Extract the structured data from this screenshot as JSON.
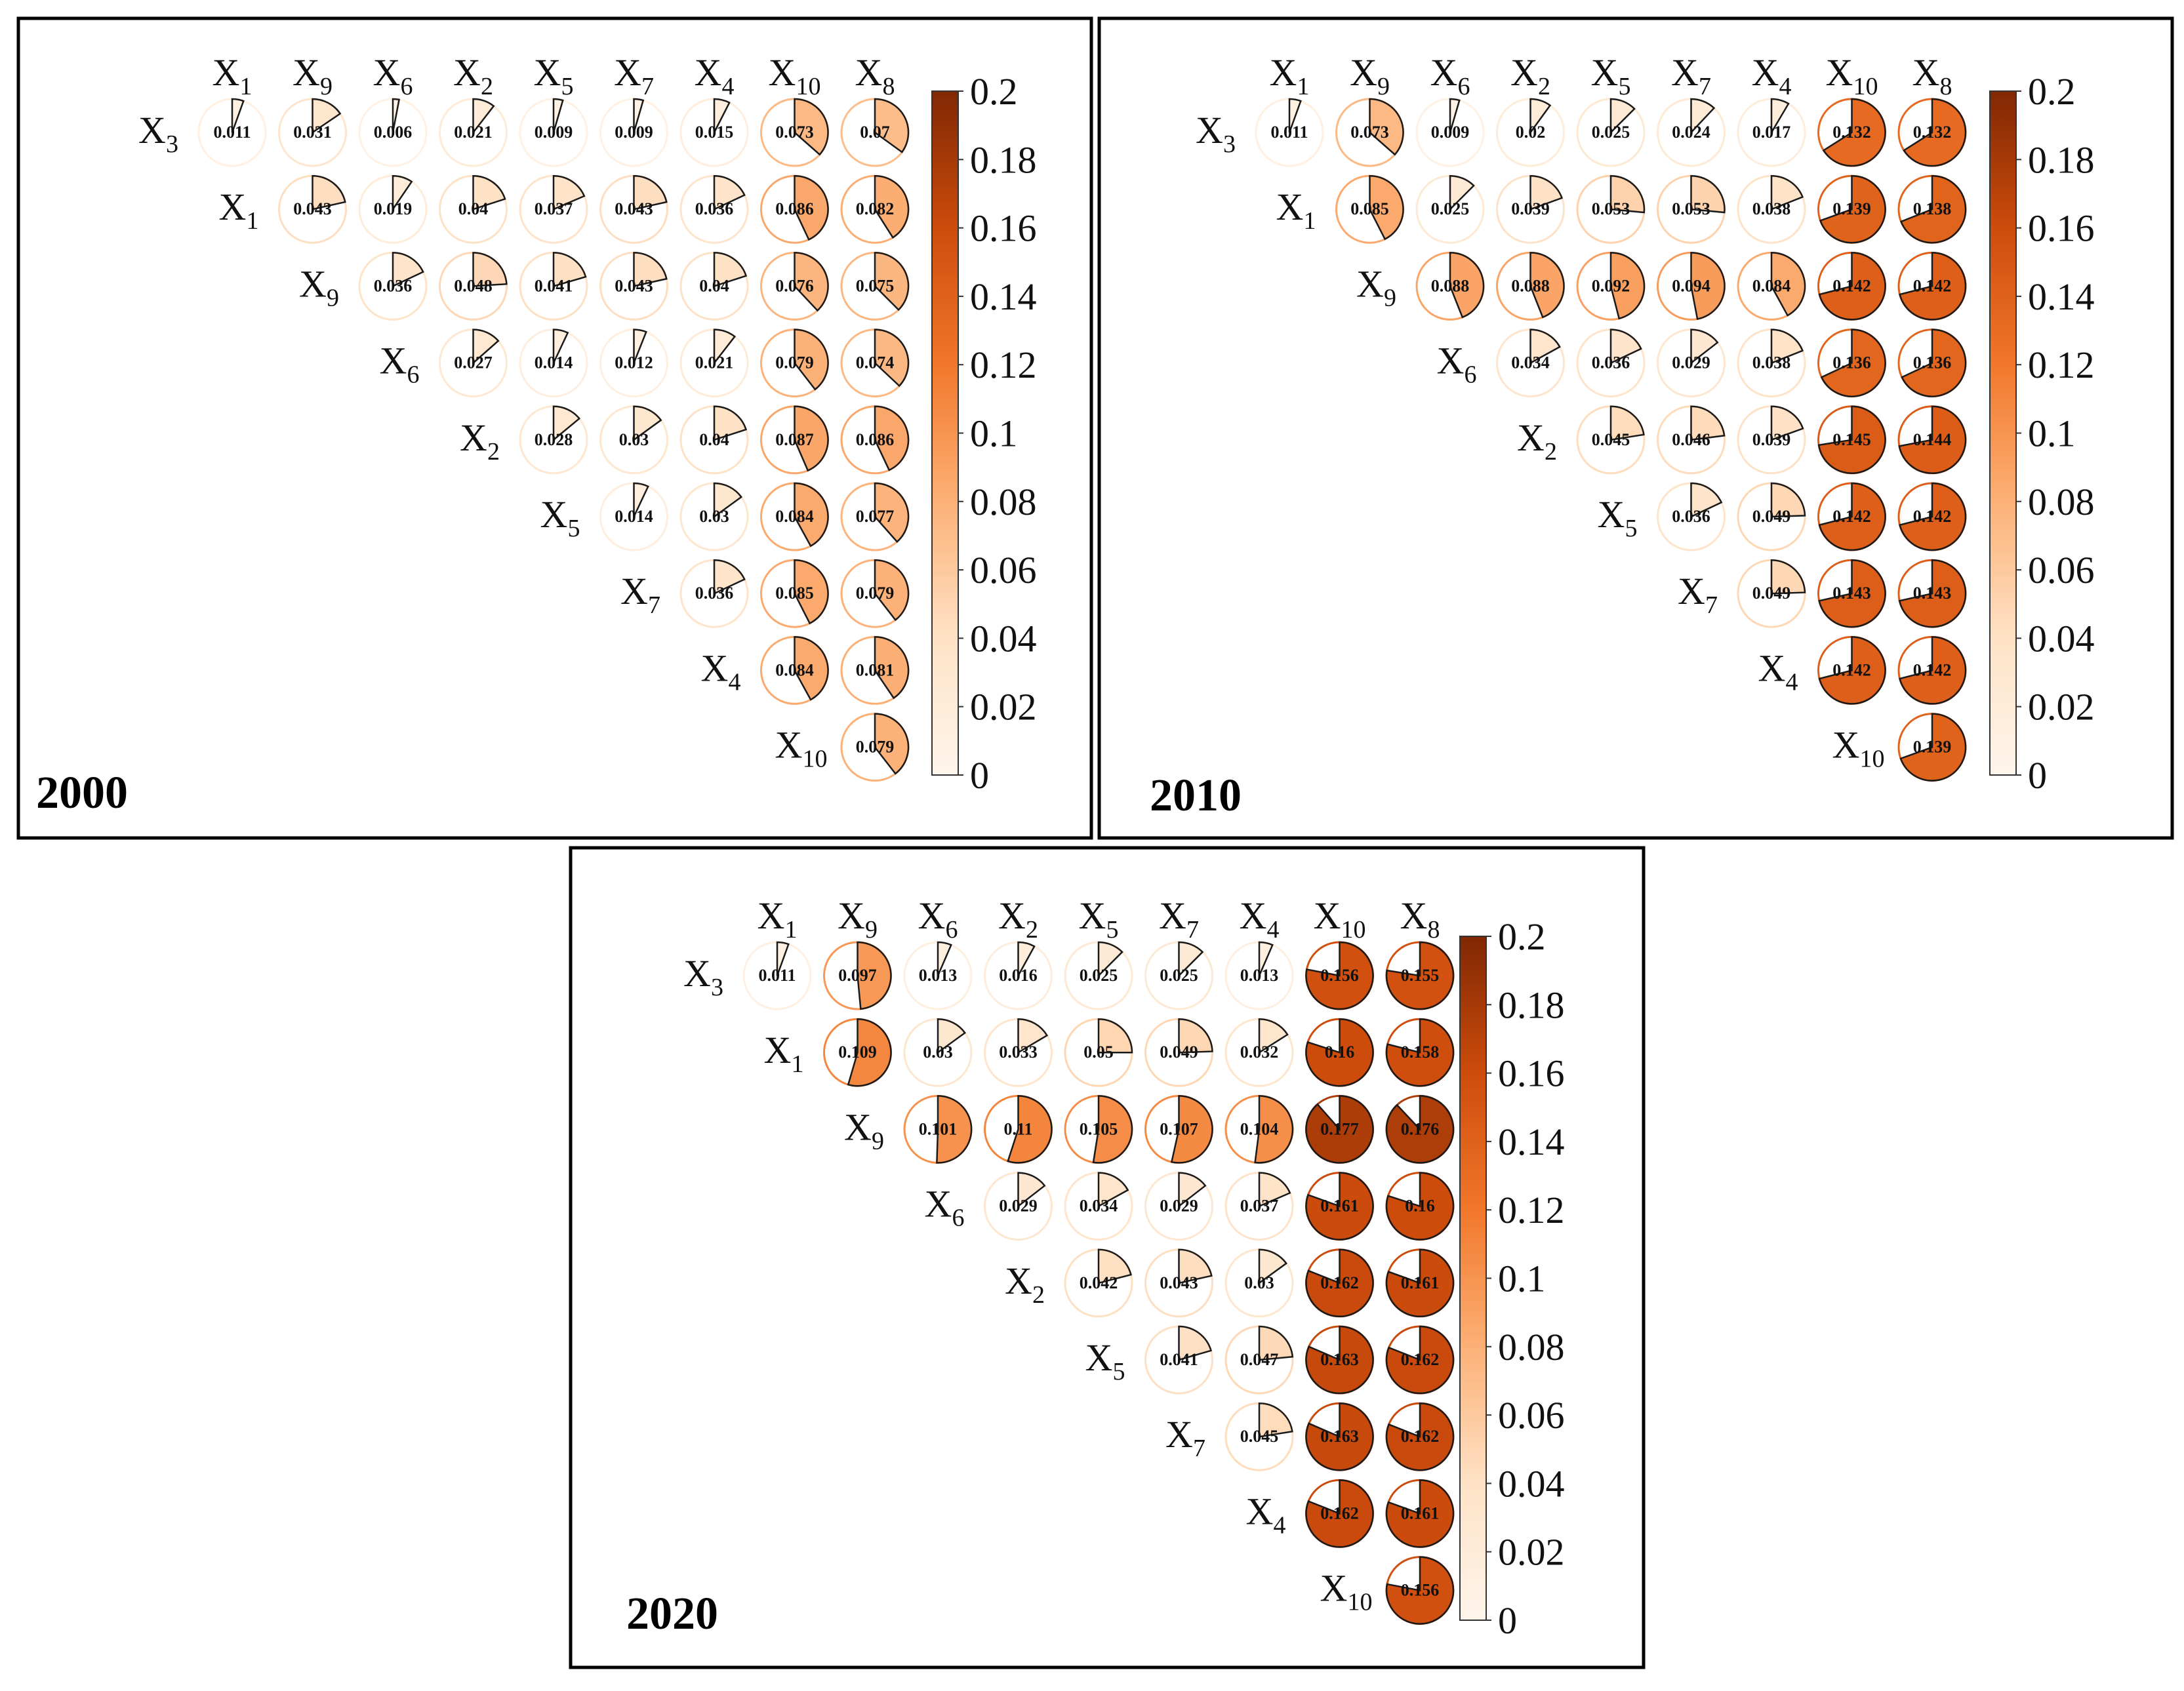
{
  "chart_data": [
    {
      "type": "pie-matrix",
      "panel_label": "2000",
      "columns": [
        [
          "X",
          "1"
        ],
        [
          "X",
          "9"
        ],
        [
          "X",
          "6"
        ],
        [
          "X",
          "2"
        ],
        [
          "X",
          "5"
        ],
        [
          "X",
          "7"
        ],
        [
          "X",
          "4"
        ],
        [
          "X",
          "10"
        ],
        [
          "X",
          "8"
        ]
      ],
      "rows": [
        [
          "X",
          "3"
        ],
        [
          "X",
          "1"
        ],
        [
          "X",
          "9"
        ],
        [
          "X",
          "6"
        ],
        [
          "X",
          "2"
        ],
        [
          "X",
          "5"
        ],
        [
          "X",
          "7"
        ],
        [
          "X",
          "4"
        ],
        [
          "X",
          "10"
        ]
      ],
      "values": [
        [
          0.011,
          0.031,
          0.006,
          0.021,
          0.009,
          0.009,
          0.015,
          0.073,
          0.07
        ],
        [
          0.043,
          0.019,
          0.04,
          0.037,
          0.043,
          0.036,
          0.086,
          0.082
        ],
        [
          0.036,
          0.048,
          0.041,
          0.043,
          0.04,
          0.076,
          0.075
        ],
        [
          0.027,
          0.014,
          0.012,
          0.021,
          0.079,
          0.074
        ],
        [
          0.028,
          0.03,
          0.04,
          0.087,
          0.086
        ],
        [
          0.014,
          0.03,
          0.084,
          0.077
        ],
        [
          0.036,
          0.085,
          0.079
        ],
        [
          0.084,
          0.081
        ],
        [
          0.079
        ]
      ],
      "colorbar": {
        "range": [
          0,
          0.2
        ],
        "ticks": [
          "0",
          "0.02",
          "0.04",
          "0.06",
          "0.08",
          "0.1",
          "0.12",
          "0.14",
          "0.16",
          "0.18",
          "0.2"
        ]
      }
    },
    {
      "type": "pie-matrix",
      "panel_label": "2010",
      "columns": [
        [
          "X",
          "1"
        ],
        [
          "X",
          "9"
        ],
        [
          "X",
          "6"
        ],
        [
          "X",
          "2"
        ],
        [
          "X",
          "5"
        ],
        [
          "X",
          "7"
        ],
        [
          "X",
          "4"
        ],
        [
          "X",
          "10"
        ],
        [
          "X",
          "8"
        ]
      ],
      "rows": [
        [
          "X",
          "3"
        ],
        [
          "X",
          "1"
        ],
        [
          "X",
          "9"
        ],
        [
          "X",
          "6"
        ],
        [
          "X",
          "2"
        ],
        [
          "X",
          "5"
        ],
        [
          "X",
          "7"
        ],
        [
          "X",
          "4"
        ],
        [
          "X",
          "10"
        ]
      ],
      "values": [
        [
          0.011,
          0.073,
          0.009,
          0.02,
          0.025,
          0.024,
          0.017,
          0.132,
          0.132
        ],
        [
          0.085,
          0.025,
          0.039,
          0.053,
          0.053,
          0.038,
          0.139,
          0.138
        ],
        [
          0.088,
          0.088,
          0.092,
          0.094,
          0.084,
          0.142,
          0.142
        ],
        [
          0.034,
          0.036,
          0.029,
          0.038,
          0.136,
          0.136
        ],
        [
          0.045,
          0.046,
          0.039,
          0.145,
          0.144
        ],
        [
          0.036,
          0.049,
          0.142,
          0.142
        ],
        [
          0.049,
          0.143,
          0.143
        ],
        [
          0.142,
          0.142
        ],
        [
          0.139
        ]
      ],
      "colorbar": {
        "range": [
          0,
          0.2
        ],
        "ticks": [
          "0",
          "0.02",
          "0.04",
          "0.06",
          "0.08",
          "0.1",
          "0.12",
          "0.14",
          "0.16",
          "0.18",
          "0.2"
        ]
      }
    },
    {
      "type": "pie-matrix",
      "panel_label": "2020",
      "columns": [
        [
          "X",
          "1"
        ],
        [
          "X",
          "9"
        ],
        [
          "X",
          "6"
        ],
        [
          "X",
          "2"
        ],
        [
          "X",
          "5"
        ],
        [
          "X",
          "7"
        ],
        [
          "X",
          "4"
        ],
        [
          "X",
          "10"
        ],
        [
          "X",
          "8"
        ]
      ],
      "rows": [
        [
          "X",
          "3"
        ],
        [
          "X",
          "1"
        ],
        [
          "X",
          "9"
        ],
        [
          "X",
          "6"
        ],
        [
          "X",
          "2"
        ],
        [
          "X",
          "5"
        ],
        [
          "X",
          "7"
        ],
        [
          "X",
          "4"
        ],
        [
          "X",
          "10"
        ]
      ],
      "values": [
        [
          0.011,
          0.097,
          0.013,
          0.016,
          0.025,
          0.025,
          0.013,
          0.156,
          0.155
        ],
        [
          0.109,
          0.03,
          0.033,
          0.05,
          0.049,
          0.032,
          0.16,
          0.158
        ],
        [
          0.101,
          0.11,
          0.105,
          0.107,
          0.104,
          0.177,
          0.176
        ],
        [
          0.029,
          0.034,
          0.029,
          0.037,
          0.161,
          0.16
        ],
        [
          0.042,
          0.043,
          0.03,
          0.162,
          0.161
        ],
        [
          0.041,
          0.047,
          0.163,
          0.162
        ],
        [
          0.045,
          0.163,
          0.162
        ],
        [
          0.162,
          0.161
        ],
        [
          0.156
        ]
      ],
      "colorbar": {
        "range": [
          0,
          0.2
        ],
        "ticks": [
          "0",
          "0.02",
          "0.04",
          "0.06",
          "0.08",
          "0.1",
          "0.12",
          "0.14",
          "0.16",
          "0.18",
          "0.2"
        ]
      }
    }
  ]
}
